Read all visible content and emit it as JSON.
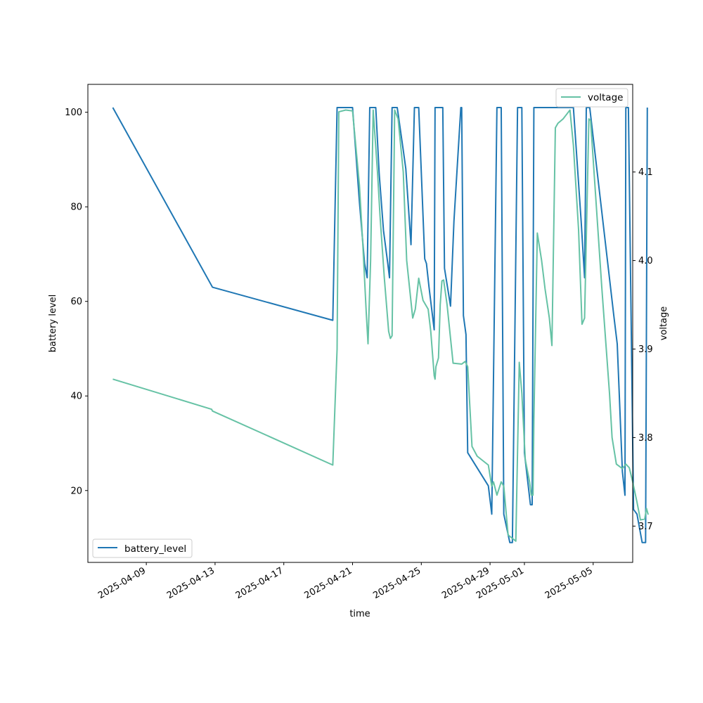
{
  "chart_data": {
    "type": "line",
    "title": "",
    "xlabel": "time",
    "ylabel_left": "battery level",
    "ylabel_right": "voltage",
    "x_ticks": [
      "2025-04-09",
      "2025-04-13",
      "2025-04-17",
      "2025-04-21",
      "2025-04-25",
      "2025-04-29",
      "2025-05-01",
      "2025-05-05"
    ],
    "x_tick_days": [
      2.0,
      6.0,
      10.0,
      14.0,
      18.0,
      22.0,
      24.0,
      28.0
    ],
    "x_domain_days": [
      -1.4,
      30.3
    ],
    "x_origin_date": "2025-04-07",
    "y_left_ticks": [
      20,
      40,
      60,
      80,
      100
    ],
    "y_left_range": [
      4.8,
      105.9
    ],
    "y_right_ticks": [
      3.7,
      3.8,
      3.9,
      4.0,
      4.1
    ],
    "y_right_range": [
      3.659,
      4.199
    ],
    "colors": {
      "battery_level": "#1f77b4",
      "voltage": "#66c2a5"
    },
    "series": [
      {
        "name": "battery_level",
        "axis": "left",
        "legend_position": "lower-left",
        "points": [
          [
            0.05,
            101
          ],
          [
            5.85,
            63
          ],
          [
            12.85,
            56
          ],
          [
            13.1,
            101
          ],
          [
            14.0,
            101
          ],
          [
            14.4,
            81
          ],
          [
            14.7,
            68
          ],
          [
            14.85,
            65
          ],
          [
            15.0,
            101
          ],
          [
            15.35,
            101
          ],
          [
            15.55,
            87
          ],
          [
            15.8,
            75
          ],
          [
            16.05,
            68
          ],
          [
            16.15,
            65
          ],
          [
            16.3,
            101
          ],
          [
            16.6,
            101
          ],
          [
            16.95,
            92
          ],
          [
            17.1,
            88
          ],
          [
            17.4,
            72
          ],
          [
            17.6,
            101
          ],
          [
            17.85,
            101
          ],
          [
            18.2,
            69
          ],
          [
            18.3,
            68
          ],
          [
            18.45,
            63
          ],
          [
            18.75,
            54
          ],
          [
            18.8,
            101
          ],
          [
            19.25,
            101
          ],
          [
            19.35,
            67
          ],
          [
            19.7,
            59
          ],
          [
            19.9,
            77
          ],
          [
            20.3,
            101
          ],
          [
            20.35,
            101
          ],
          [
            20.45,
            57
          ],
          [
            20.6,
            53
          ],
          [
            20.7,
            28
          ],
          [
            21.9,
            21
          ],
          [
            22.1,
            15
          ],
          [
            22.4,
            101
          ],
          [
            22.65,
            101
          ],
          [
            22.8,
            15
          ],
          [
            23.15,
            9
          ],
          [
            23.3,
            9
          ],
          [
            23.6,
            101
          ],
          [
            23.85,
            101
          ],
          [
            24.0,
            28
          ],
          [
            24.35,
            17
          ],
          [
            24.45,
            17
          ],
          [
            24.55,
            101
          ],
          [
            26.8,
            101
          ],
          [
            26.85,
            101
          ],
          [
            27.3,
            77
          ],
          [
            27.5,
            65
          ],
          [
            27.6,
            101
          ],
          [
            27.8,
            101
          ],
          [
            29.2,
            57
          ],
          [
            29.4,
            51
          ],
          [
            29.7,
            24
          ],
          [
            29.85,
            19
          ],
          [
            29.9,
            101
          ],
          [
            30.05,
            101
          ],
          [
            30.35,
            16
          ],
          [
            30.55,
            15
          ],
          [
            30.85,
            9
          ],
          [
            31.05,
            9
          ],
          [
            31.15,
            101
          ]
        ]
      },
      {
        "name": "voltage",
        "axis": "right",
        "legend_position": "upper-right",
        "points": [
          [
            0.05,
            3.866
          ],
          [
            5.8,
            3.832
          ],
          [
            5.85,
            3.83
          ],
          [
            12.85,
            3.769
          ],
          [
            13.1,
            3.9
          ],
          [
            13.2,
            4.168
          ],
          [
            13.6,
            4.17
          ],
          [
            14.0,
            4.169
          ],
          [
            14.4,
            4.085
          ],
          [
            14.6,
            4.017
          ],
          [
            14.8,
            3.94
          ],
          [
            14.9,
            3.906
          ],
          [
            15.05,
            4.0
          ],
          [
            15.2,
            4.17
          ],
          [
            15.45,
            4.1
          ],
          [
            15.6,
            4.05
          ],
          [
            15.85,
            3.98
          ],
          [
            16.1,
            3.92
          ],
          [
            16.2,
            3.912
          ],
          [
            16.3,
            3.915
          ],
          [
            16.45,
            4.17
          ],
          [
            16.65,
            4.16
          ],
          [
            16.95,
            4.1
          ],
          [
            17.15,
            4.0
          ],
          [
            17.5,
            3.935
          ],
          [
            17.65,
            3.945
          ],
          [
            17.85,
            3.98
          ],
          [
            18.1,
            3.955
          ],
          [
            18.4,
            3.945
          ],
          [
            18.55,
            3.92
          ],
          [
            18.75,
            3.87
          ],
          [
            18.8,
            3.866
          ],
          [
            18.85,
            3.88
          ],
          [
            19.0,
            3.89
          ],
          [
            19.1,
            3.95
          ],
          [
            19.2,
            3.977
          ],
          [
            19.3,
            3.978
          ],
          [
            19.5,
            3.95
          ],
          [
            19.85,
            3.884
          ],
          [
            20.35,
            3.883
          ],
          [
            20.55,
            3.886
          ],
          [
            20.7,
            3.88
          ],
          [
            20.95,
            3.79
          ],
          [
            21.25,
            3.779
          ],
          [
            21.9,
            3.769
          ],
          [
            22.1,
            3.745
          ],
          [
            22.2,
            3.75
          ],
          [
            22.4,
            3.735
          ],
          [
            22.65,
            3.75
          ],
          [
            22.8,
            3.745
          ],
          [
            23.05,
            3.69
          ],
          [
            23.5,
            3.683
          ],
          [
            23.7,
            3.885
          ],
          [
            23.85,
            3.85
          ],
          [
            24.05,
            3.775
          ],
          [
            24.3,
            3.75
          ],
          [
            24.4,
            3.735
          ],
          [
            24.5,
            3.735
          ],
          [
            24.55,
            3.82
          ],
          [
            24.75,
            4.031
          ],
          [
            25.0,
            4.0
          ],
          [
            25.2,
            3.968
          ],
          [
            25.45,
            3.935
          ],
          [
            25.6,
            3.904
          ],
          [
            25.8,
            4.15
          ],
          [
            25.95,
            4.155
          ],
          [
            26.25,
            4.16
          ],
          [
            26.45,
            4.165
          ],
          [
            26.65,
            4.17
          ],
          [
            26.85,
            4.13
          ],
          [
            27.15,
            4.035
          ],
          [
            27.35,
            3.928
          ],
          [
            27.5,
            3.935
          ],
          [
            27.75,
            4.16
          ],
          [
            27.85,
            4.158
          ],
          [
            28.5,
            3.97
          ],
          [
            28.95,
            3.85
          ],
          [
            29.1,
            3.8
          ],
          [
            29.35,
            3.77
          ],
          [
            29.7,
            3.765
          ],
          [
            29.9,
            3.77
          ],
          [
            30.1,
            3.766
          ],
          [
            30.3,
            3.75
          ],
          [
            30.55,
            3.727
          ],
          [
            30.75,
            3.707
          ],
          [
            31.0,
            3.708
          ],
          [
            31.1,
            3.72
          ],
          [
            31.2,
            3.713
          ]
        ]
      }
    ]
  }
}
